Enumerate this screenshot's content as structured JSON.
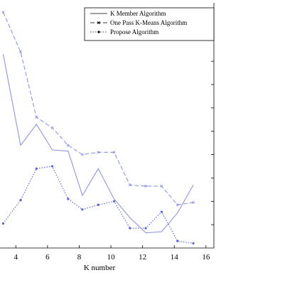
{
  "chart_data": {
    "type": "line",
    "title": "",
    "xlabel": "K number",
    "ylabel": "",
    "xlim": [
      3,
      16.5
    ],
    "ylim": [
      0,
      10.5
    ],
    "x_ticks": [
      4,
      6,
      8,
      10,
      12,
      14,
      16
    ],
    "x_tick_labels": [
      "4",
      "6",
      "8",
      "10",
      "12",
      "14",
      "16"
    ],
    "y_ticks": [
      1,
      2,
      3,
      4,
      5,
      6,
      7,
      8,
      9,
      10
    ],
    "grid": false,
    "legend_position": "top-right",
    "series": [
      {
        "name": "K Member Algorithm",
        "color": "#8f95e6",
        "dash": "solid",
        "marker": "none",
        "x": [
          3.2,
          4.3,
          5.3,
          6.3,
          7.3,
          8.2,
          9.2,
          10.2,
          11.2,
          12.2,
          13.2,
          14.2,
          15.2
        ],
        "y": [
          8.3,
          4.4,
          5.3,
          4.2,
          4.15,
          2.25,
          3.4,
          2.1,
          1.3,
          0.65,
          0.7,
          1.5,
          2.7
        ]
      },
      {
        "name": "One Pass K-Means Algorithm",
        "color": "#8f95e6",
        "dash": "dashed",
        "marker": "x",
        "x": [
          3.2,
          4.3,
          5.3,
          6.3,
          7.3,
          8.2,
          9.2,
          10.2,
          11.2,
          12.2,
          13.2,
          14.2,
          15.2
        ],
        "y": [
          10.1,
          8.4,
          5.6,
          5.15,
          4.4,
          4.0,
          4.1,
          4.1,
          2.7,
          2.65,
          2.65,
          1.85,
          1.95
        ]
      },
      {
        "name": "Propose Algorithm",
        "color": "#5a62e0",
        "dash": "dotted",
        "marker": "*",
        "x": [
          3.2,
          4.3,
          5.3,
          6.3,
          7.3,
          8.2,
          9.2,
          10.2,
          11.2,
          12.2,
          13.2,
          14.2,
          15.2
        ],
        "y": [
          1.05,
          2.05,
          3.4,
          3.5,
          2.1,
          1.65,
          1.85,
          2.0,
          0.85,
          0.85,
          1.55,
          0.3,
          0.2
        ]
      }
    ]
  }
}
